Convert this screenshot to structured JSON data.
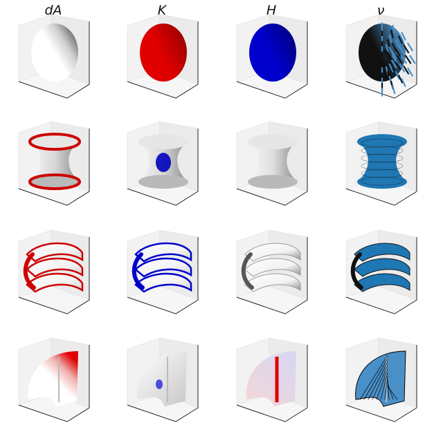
{
  "columns": [
    {
      "title": "dA"
    },
    {
      "title": "K"
    },
    {
      "title": "H"
    },
    {
      "title": "ν"
    }
  ],
  "rows": [
    {
      "surface": "sphere",
      "panels": [
        {
          "shape": "sphere",
          "shading": "red-grey",
          "primary": "#e8e8e8",
          "accent": "#f0f0f0"
        },
        {
          "shape": "sphere",
          "shading": "solid",
          "primary": "#e00000",
          "accent": "#a00000"
        },
        {
          "shape": "sphere",
          "shading": "solid",
          "primary": "#0000cc",
          "accent": "#000088"
        },
        {
          "shape": "sphere",
          "shading": "normals",
          "primary": "#111111",
          "accent": "#4a90c8"
        }
      ]
    },
    {
      "surface": "catenoid",
      "panels": [
        {
          "shape": "catenoid",
          "shading": "rim",
          "primary": "#d8d8d8",
          "accent": "#cc0000"
        },
        {
          "shape": "catenoid",
          "shading": "waist",
          "primary": "#d8d8d8",
          "accent": "#0000bb"
        },
        {
          "shape": "catenoid",
          "shading": "grey",
          "primary": "#e0e0e0",
          "accent": "#9a9a9a"
        },
        {
          "shape": "catenoid",
          "shading": "normals",
          "primary": "#1f77b4",
          "accent": "#111111"
        }
      ]
    },
    {
      "surface": "helicoid",
      "panels": [
        {
          "shape": "helicoid",
          "shading": "edges",
          "primary": "#f2f2f2",
          "accent": "#cc0000"
        },
        {
          "shape": "helicoid",
          "shading": "edges",
          "primary": "#f2f2f2",
          "accent": "#0000cc"
        },
        {
          "shape": "helicoid",
          "shading": "grey",
          "primary": "#f2f2f2",
          "accent": "#8a8a8a"
        },
        {
          "shape": "helicoid",
          "shading": "normals",
          "primary": "#1f77b4",
          "accent": "#111111"
        }
      ]
    },
    {
      "surface": "cone-patch",
      "panels": [
        {
          "shape": "wedge",
          "shading": "edges",
          "primary": "#f0f0f0",
          "accent": "#e00000"
        },
        {
          "shape": "wedge",
          "shading": "spot",
          "primary": "#f0f0f0",
          "accent": "#3030dd"
        },
        {
          "shape": "wedge",
          "shading": "mixed",
          "primary": "#f0f0f0",
          "accent": "#e00000"
        },
        {
          "shape": "wedge",
          "shading": "normals",
          "primary": "#4a90c8",
          "accent": "#000000"
        }
      ]
    }
  ]
}
